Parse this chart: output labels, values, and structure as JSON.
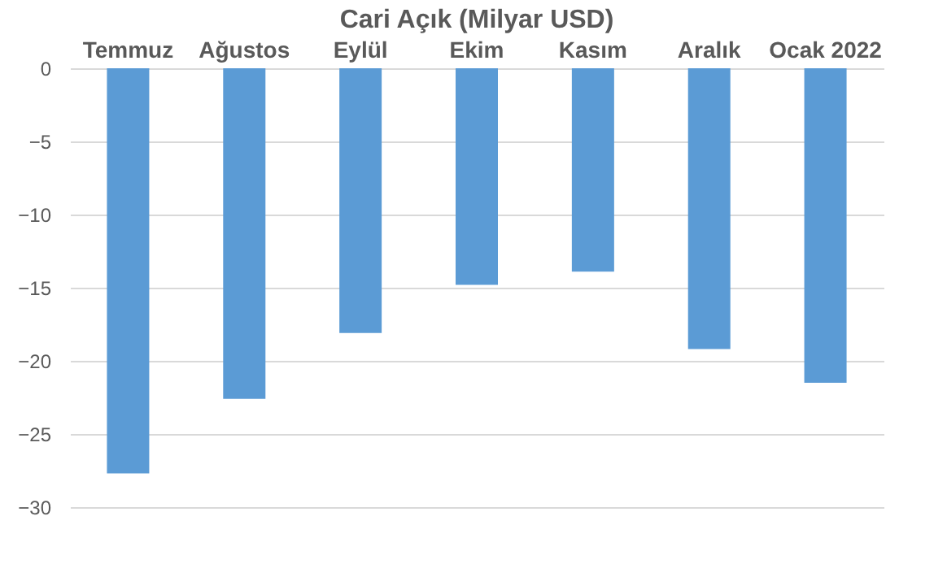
{
  "chart_data": {
    "type": "bar",
    "title": "Cari Açık (Milyar USD)",
    "categories": [
      "Temmuz",
      "Ağustos",
      "Eylül",
      "Ekim",
      "Kasım",
      "Aralık",
      "Ocak 2022"
    ],
    "values": [
      -27.7,
      -22.6,
      -18.1,
      -14.8,
      -13.9,
      -19.2,
      -21.5
    ],
    "color": "#5b9bd5",
    "ylim": [
      -30,
      0
    ],
    "yticks": [
      -30,
      -25,
      -20,
      -15,
      -10,
      -5,
      0
    ],
    "grid": "y"
  }
}
